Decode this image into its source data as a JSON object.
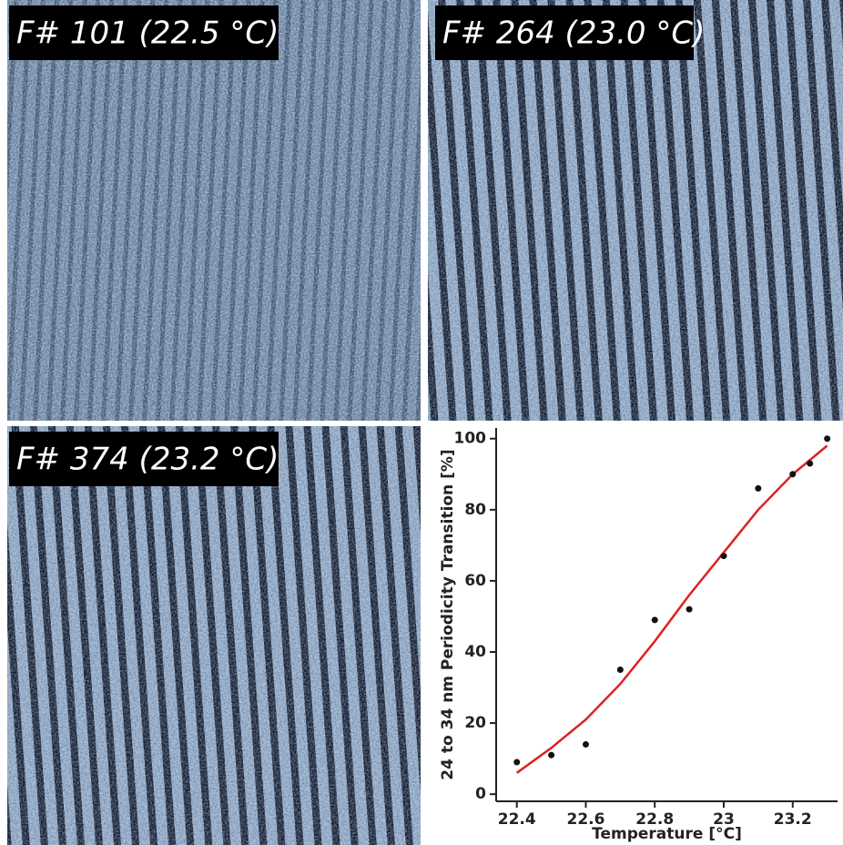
{
  "panels": [
    {
      "label": "F# 101 (22.5 °C)"
    },
    {
      "label": "F# 264 (23.0 °C)"
    },
    {
      "label": "F# 374 (23.2 °C)"
    }
  ],
  "chart_data": {
    "type": "scatter",
    "x_label": "Temperature [°C]",
    "y_label": "24 to 34 nm Periodicity Transition [%]",
    "points": {
      "color": "#111111",
      "x": [
        22.4,
        22.5,
        22.6,
        22.7,
        22.8,
        22.9,
        23.0,
        23.1,
        23.2,
        23.25,
        23.3
      ],
      "y": [
        9,
        11,
        14,
        35,
        49,
        52,
        67,
        86,
        90,
        93,
        100
      ]
    },
    "fit": {
      "color": "#e02020",
      "x": [
        22.4,
        22.5,
        22.6,
        22.7,
        22.8,
        22.9,
        23.0,
        23.1,
        23.2,
        23.3
      ],
      "y": [
        6,
        13,
        21,
        31,
        43,
        56,
        68,
        80,
        90,
        98
      ]
    },
    "xlim": [
      22.34,
      23.33
    ],
    "ylim": [
      -2,
      103
    ],
    "xticks": [
      22.4,
      22.6,
      22.8,
      23,
      23.2
    ],
    "yticks": [
      0,
      20,
      40,
      60,
      80,
      100
    ]
  }
}
